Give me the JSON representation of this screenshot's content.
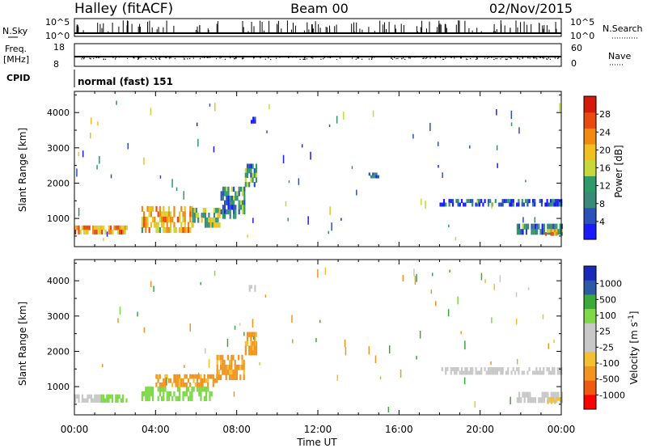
{
  "header": {
    "site": "Halley (fitACF)",
    "beam": "Beam 00",
    "date": "02/Nov/2015"
  },
  "top_strip": {
    "nsky_label": "N.Sky",
    "nsky_ticks": [
      "10^5",
      "10^0"
    ],
    "nsearch_label": "N.Search",
    "nsearch_ticks": [
      "10^5",
      "10^0"
    ],
    "freq_label": "Freq.",
    "freq_unit": "[MHz]",
    "freq_ticks": [
      "18",
      "8"
    ],
    "nave_label": "Nave",
    "nave_ticks": [
      "60",
      "0"
    ],
    "cpid_label": "CPID",
    "cpid_value": "normal (fast) 151"
  },
  "colors": {
    "power_scale": [
      "#1a1aff",
      "#2a52b8",
      "#3a8a7a",
      "#2f9a6a",
      "#c8d83a",
      "#f0c020",
      "#f08a10",
      "#e84a10",
      "#d41a0a"
    ],
    "velocity_scale": [
      "#ff0000",
      "#f05a10",
      "#f29420",
      "#f2c030",
      "#c8c8c8",
      "#c8c8c8",
      "#7ed84a",
      "#3aaa3a",
      "#2a5aa8",
      "#1a2ab8"
    ]
  },
  "chart_data": [
    {
      "type": "heatmap",
      "parameter": "Power",
      "xlabel": "",
      "ylabel": "Slant Range [km]",
      "x_unit": "hours UT",
      "xlim": [
        0,
        24
      ],
      "ylim": [
        200,
        4600
      ],
      "yticks": [
        1000,
        2000,
        3000,
        4000
      ],
      "xticks": [
        0,
        4,
        8,
        12,
        16,
        20,
        24
      ],
      "colorbar": {
        "label": "Power [dB]",
        "ticks": [
          "4",
          "8",
          "12",
          "16",
          "20",
          "24",
          "28"
        ],
        "min": 0,
        "max": 32
      },
      "regions": [
        {
          "t0": 0.0,
          "t1": 2.6,
          "r0": 560,
          "r1": 800,
          "value": 22
        },
        {
          "t0": 3.3,
          "t1": 5.8,
          "r0": 600,
          "r1": 1350,
          "value": 20
        },
        {
          "t0": 5.8,
          "t1": 7.2,
          "r0": 750,
          "r1": 1300,
          "value": 14
        },
        {
          "t0": 7.2,
          "t1": 8.4,
          "r0": 1000,
          "r1": 1900,
          "value": 10
        },
        {
          "t0": 8.4,
          "t1": 9.0,
          "r0": 1900,
          "r1": 2550,
          "value": 9
        },
        {
          "t0": 8.6,
          "t1": 8.9,
          "r0": 3700,
          "r1": 3880,
          "value": 5
        },
        {
          "t0": 14.5,
          "t1": 15.0,
          "r0": 2150,
          "r1": 2300,
          "value": 5
        },
        {
          "t0": 18.0,
          "t1": 24.0,
          "r0": 1350,
          "r1": 1550,
          "value": 5
        },
        {
          "t0": 21.8,
          "t1": 24.0,
          "r0": 550,
          "r1": 850,
          "value": 8
        },
        {
          "t0": 23.2,
          "t1": 24.0,
          "r0": 520,
          "r1": 700,
          "value": 20
        }
      ]
    },
    {
      "type": "heatmap",
      "parameter": "Velocity",
      "xlabel": "Time UT",
      "ylabel": "Slant Range [km]",
      "x_unit": "hours UT",
      "xlim": [
        0,
        24
      ],
      "ylim": [
        200,
        4600
      ],
      "yticks": [
        1000,
        2000,
        3000,
        4000
      ],
      "xticks": [
        0,
        4,
        8,
        12,
        16,
        20,
        24
      ],
      "xtick_labels": [
        "00:00",
        "04:00",
        "08:00",
        "12:00",
        "16:00",
        "20:00",
        "00:00"
      ],
      "colorbar": {
        "label": "Velocity [m s^-1]",
        "ticks": [
          "1000",
          "500",
          "100",
          "25",
          "-25",
          "-100",
          "-500",
          "-1000"
        ]
      },
      "regions": [
        {
          "t0": 0.0,
          "t1": 1.3,
          "r0": 560,
          "r1": 780,
          "value": 0
        },
        {
          "t0": 1.3,
          "t1": 2.6,
          "r0": 560,
          "r1": 780,
          "value": 60
        },
        {
          "t0": 3.3,
          "t1": 6.8,
          "r0": 600,
          "r1": 1000,
          "value": 60
        },
        {
          "t0": 4.0,
          "t1": 7.0,
          "r0": 1000,
          "r1": 1350,
          "value": -150
        },
        {
          "t0": 7.0,
          "t1": 8.4,
          "r0": 1200,
          "r1": 1900,
          "value": -150
        },
        {
          "t0": 8.4,
          "t1": 9.0,
          "r0": 1900,
          "r1": 2550,
          "value": -150
        },
        {
          "t0": 8.6,
          "t1": 8.9,
          "r0": 3700,
          "r1": 3880,
          "value": 0
        },
        {
          "t0": 18.0,
          "t1": 24.0,
          "r0": 1350,
          "r1": 1550,
          "value": 0
        },
        {
          "t0": 21.8,
          "t1": 24.0,
          "r0": 550,
          "r1": 850,
          "value": 0
        },
        {
          "t0": 23.3,
          "t1": 24.0,
          "r0": 520,
          "r1": 700,
          "value": -60
        }
      ]
    }
  ]
}
